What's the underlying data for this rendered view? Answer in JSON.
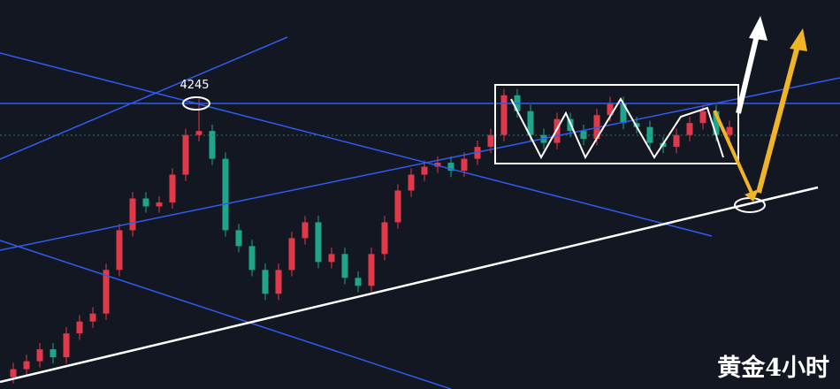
{
  "chart_data": {
    "type": "candlestick",
    "title": "黄金4小时",
    "annotation": "4245",
    "ylim": [
      3880,
      4370
    ],
    "up_color": "#e0394a",
    "down_color": "#1fa58a",
    "open": [
      3895,
      3905,
      3915,
      3930,
      3920,
      3950,
      3965,
      3975,
      4030,
      4080,
      4120,
      4110,
      4115,
      4150,
      4200,
      4205,
      4170,
      4080,
      4060,
      4030,
      4000,
      4030,
      4070,
      4090,
      4040,
      4050,
      4020,
      4010,
      4050,
      4090,
      4130,
      4150,
      4160,
      4165,
      4155,
      4170,
      4185,
      4200,
      4250,
      4230,
      4200,
      4190,
      4220,
      4205,
      4195,
      4225,
      4240,
      4215,
      4210,
      4190,
      4185,
      4200,
      4215,
      4230,
      4200
    ],
    "high": [
      3913,
      3923,
      3938,
      3938,
      3958,
      3973,
      3983,
      4038,
      4088,
      4128,
      4128,
      4123,
      4158,
      4208,
      4245,
      4213,
      4178,
      4088,
      4068,
      4038,
      4038,
      4078,
      4098,
      4098,
      4058,
      4058,
      4028,
      4058,
      4098,
      4138,
      4158,
      4168,
      4173,
      4173,
      4178,
      4193,
      4208,
      4258,
      4258,
      4238,
      4208,
      4228,
      4228,
      4213,
      4233,
      4248,
      4248,
      4223,
      4218,
      4198,
      4208,
      4223,
      4238,
      4238,
      4218
    ],
    "low": [
      3887,
      3897,
      3907,
      3912,
      3912,
      3942,
      3957,
      3967,
      4022,
      4072,
      4102,
      4102,
      4107,
      4142,
      4192,
      4162,
      4072,
      4052,
      4022,
      3992,
      3992,
      4022,
      4062,
      4032,
      4032,
      4012,
      4002,
      4002,
      4042,
      4082,
      4122,
      4142,
      4152,
      4147,
      4147,
      4162,
      4177,
      4192,
      4222,
      4192,
      4182,
      4182,
      4197,
      4187,
      4187,
      4217,
      4207,
      4202,
      4182,
      4177,
      4177,
      4192,
      4207,
      4192,
      4192
    ],
    "close": [
      3905,
      3915,
      3930,
      3920,
      3950,
      3965,
      3975,
      4030,
      4080,
      4120,
      4110,
      4115,
      4150,
      4200,
      4205,
      4170,
      4080,
      4060,
      4030,
      4000,
      4030,
      4070,
      4090,
      4040,
      4050,
      4020,
      4010,
      4050,
      4090,
      4130,
      4150,
      4160,
      4165,
      4155,
      4170,
      4185,
      4200,
      4250,
      4230,
      4200,
      4190,
      4220,
      4205,
      4195,
      4225,
      4240,
      4215,
      4210,
      4190,
      4185,
      4200,
      4215,
      4230,
      4200,
      4210
    ]
  }
}
